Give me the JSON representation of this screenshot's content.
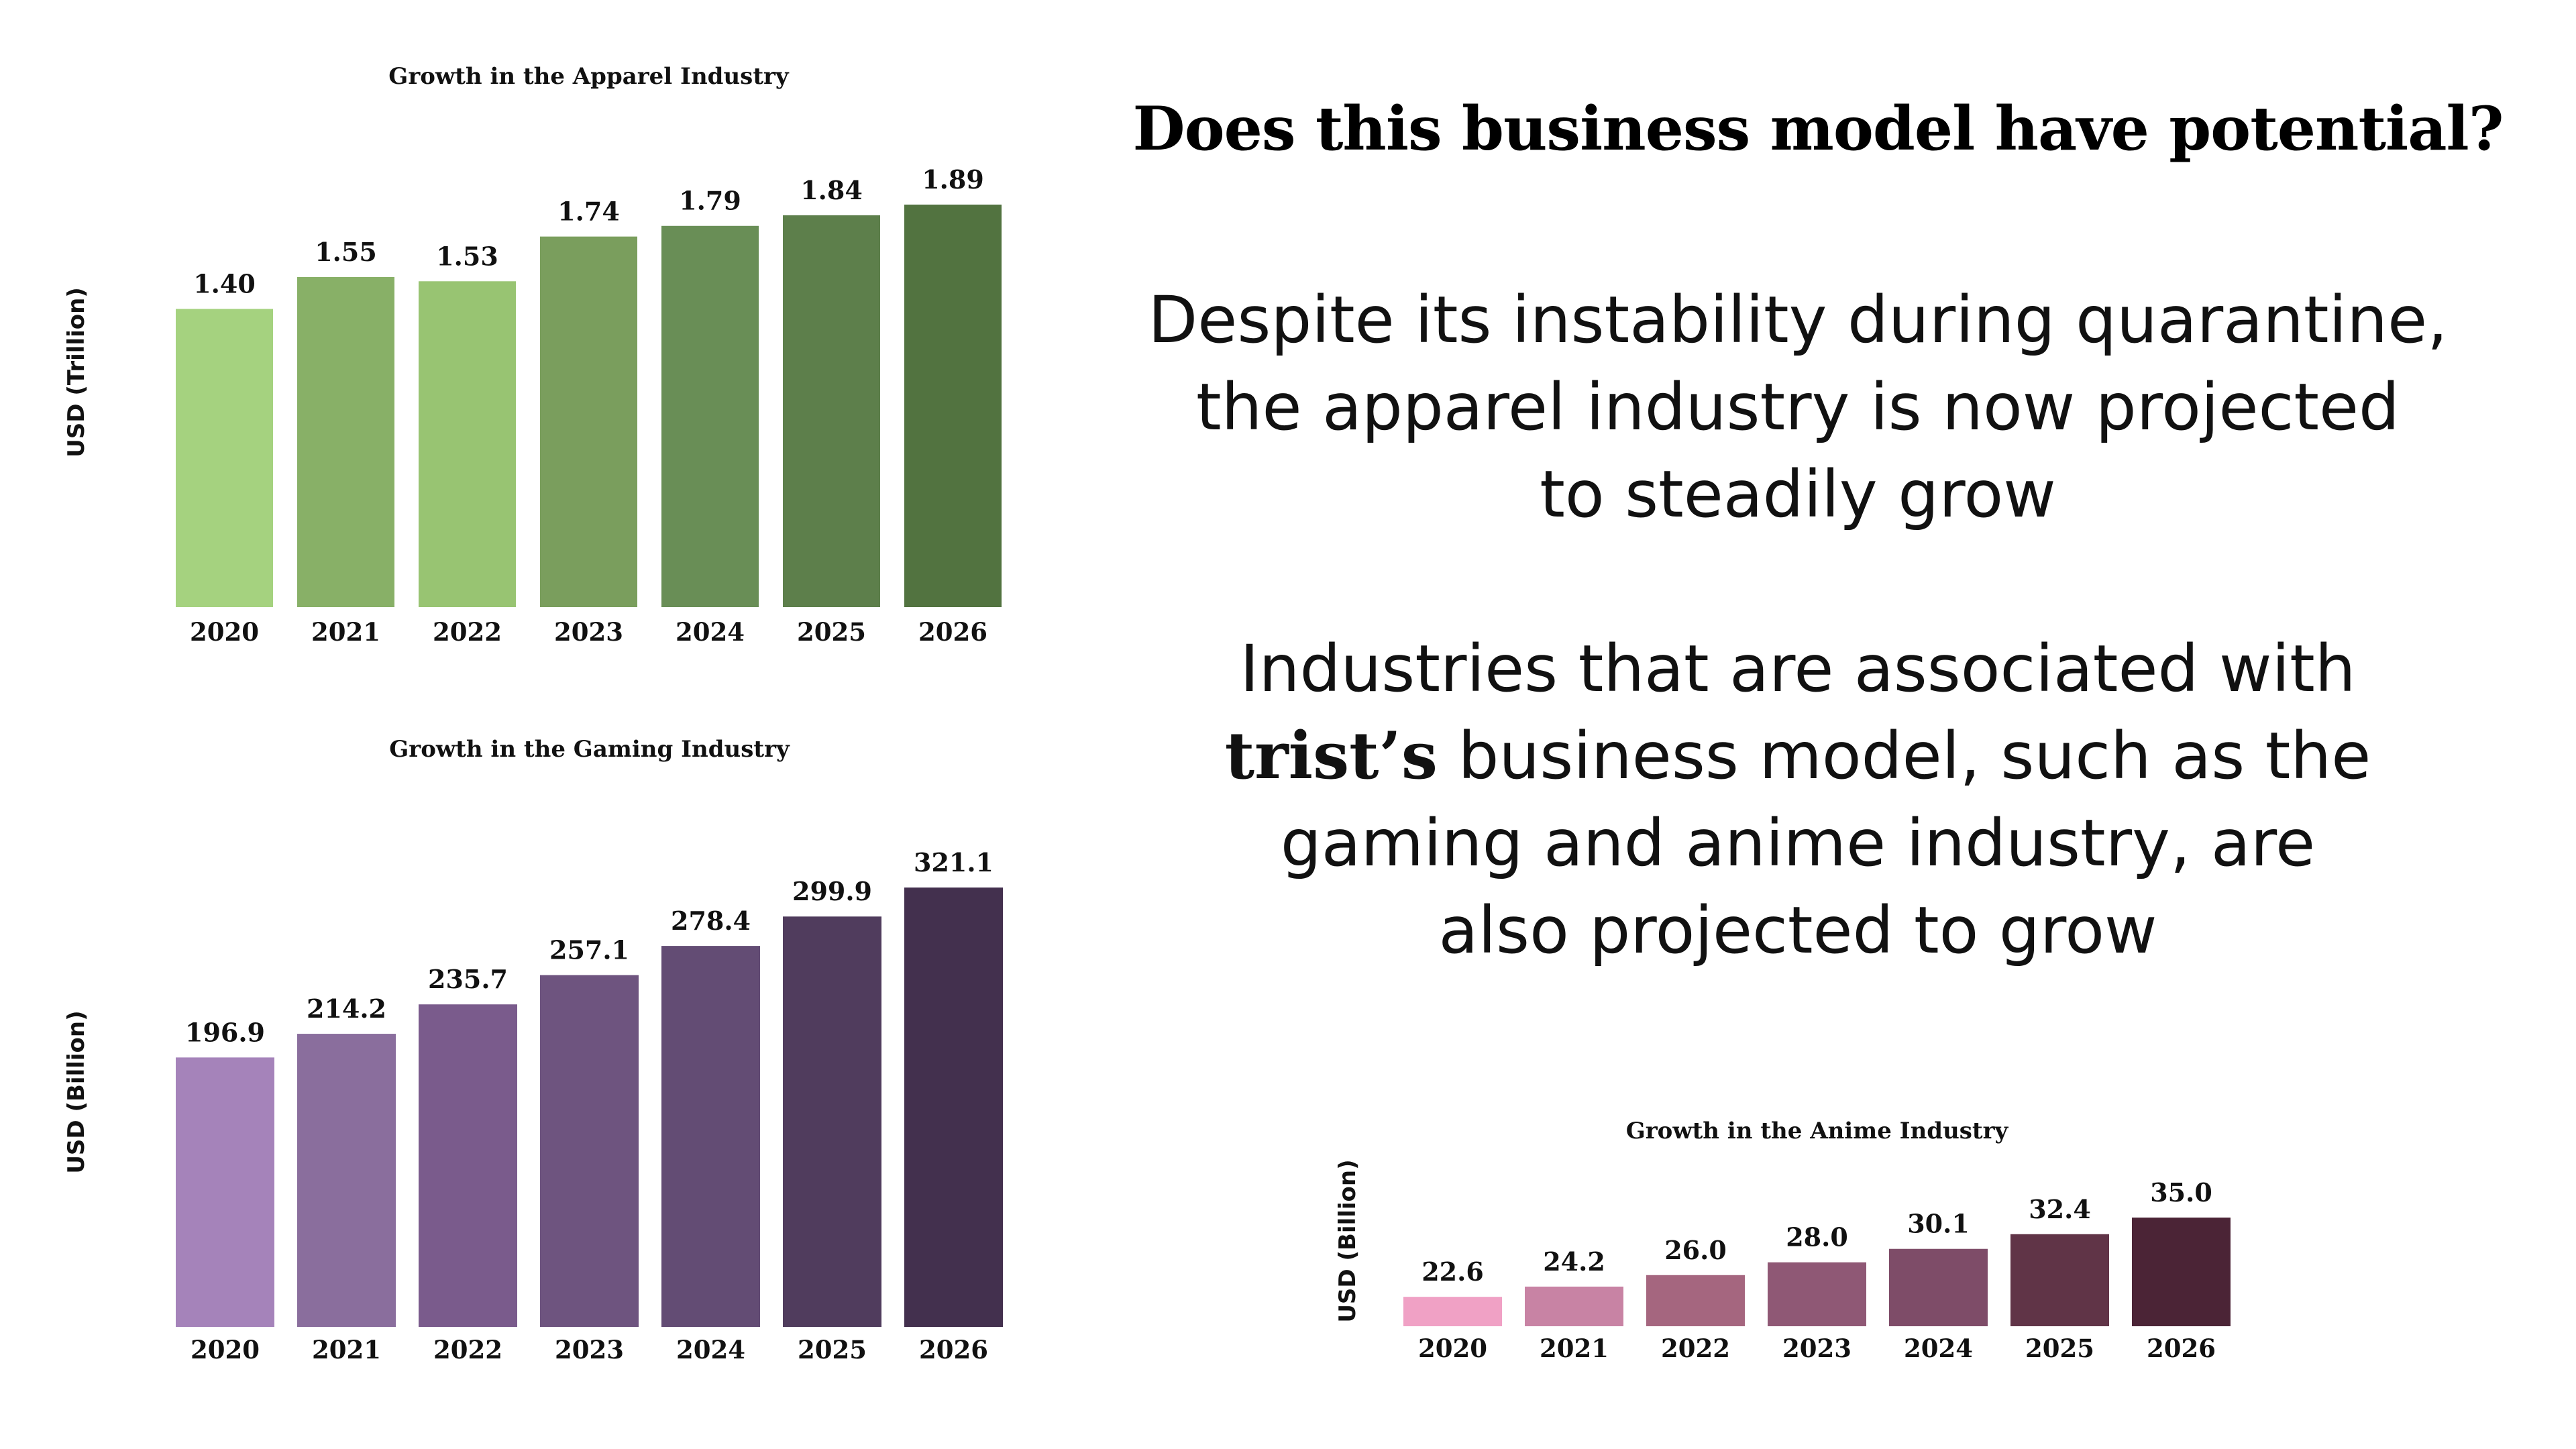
{
  "slide": {
    "headline": "Does this business model have potential?",
    "paragraph1": {
      "lines": [
        "Despite its instability during quarantine,",
        "the apparel industry is now projected",
        "to steadily grow"
      ]
    },
    "paragraph2": {
      "line1": "Industries that are associated with",
      "line2_brand": "trist’s",
      "line2_rest": " business model, such as the",
      "line3": "gaming and anime industry, are",
      "line4": "also projected to grow"
    }
  },
  "chart_data": [
    {
      "id": "apparel",
      "type": "bar",
      "title": "Growth in the Apparel Industry",
      "ylabel": "USD (Trillion)",
      "xlabel": "",
      "categories": [
        "2020",
        "2021",
        "2022",
        "2023",
        "2024",
        "2025",
        "2026"
      ],
      "values": [
        1.4,
        1.55,
        1.53,
        1.74,
        1.79,
        1.84,
        1.89
      ],
      "value_labels": [
        "1.40",
        "1.55",
        "1.53",
        "1.74",
        "1.79",
        "1.84",
        "1.89"
      ],
      "ylim": [
        0,
        1.89
      ],
      "grid": false,
      "colors": [
        "#a5d27f",
        "#88b067",
        "#98c472",
        "#7a9e5d",
        "#698e56",
        "#5d7f4b",
        "#527340"
      ]
    },
    {
      "id": "gaming",
      "type": "bar",
      "title": "Growth in the Gaming Industry",
      "ylabel": "USD (Billion)",
      "xlabel": "",
      "categories": [
        "2020",
        "2021",
        "2022",
        "2023",
        "2024",
        "2025",
        "2026"
      ],
      "values": [
        196.9,
        214.2,
        235.7,
        257.1,
        278.4,
        299.9,
        321.1
      ],
      "value_labels": [
        "196.9",
        "214.2",
        "235.7",
        "257.1",
        "278.4",
        "299.9",
        "321.1"
      ],
      "ylim": [
        0,
        321.1
      ],
      "grid": false,
      "colors": [
        "#a583ba",
        "#8a6e9d",
        "#7a5b8c",
        "#6e547f",
        "#634c74",
        "#503c5d",
        "#43304e"
      ]
    },
    {
      "id": "anime",
      "type": "bar",
      "title": "Growth in the Anime Industry",
      "ylabel": "USD (Billion)",
      "xlabel": "",
      "categories": [
        "2020",
        "2021",
        "2022",
        "2023",
        "2024",
        "2025",
        "2026"
      ],
      "values": [
        22.6,
        24.2,
        26.0,
        28.0,
        30.1,
        32.4,
        35.0
      ],
      "value_labels": [
        "22.6",
        "24.2",
        "26.0",
        "28.0",
        "30.1",
        "32.4",
        "35.0"
      ],
      "ylim": [
        18.0,
        35.0
      ],
      "grid": false,
      "colors": [
        "#f0a1c5",
        "#c883a4",
        "#a5667f",
        "#8f5875",
        "#7e4c68",
        "#603447",
        "#4b2436"
      ]
    }
  ]
}
